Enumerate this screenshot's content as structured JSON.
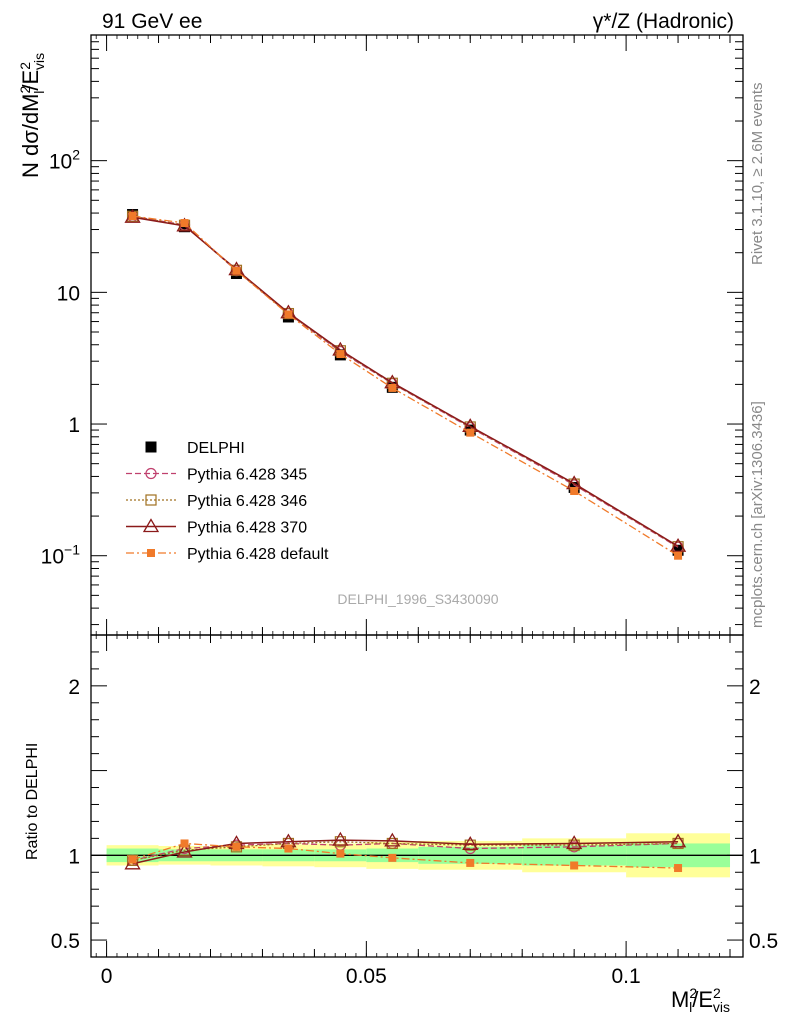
{
  "header": {
    "left": "91 GeV ee",
    "right": "γ*/Z (Hadronic)"
  },
  "side_labels": {
    "rivet": "Rivet 3.1.10, ≥ 2.6M events",
    "mcplots": "mcplots.cern.ch [arXiv:1306.3436]"
  },
  "watermark": "DELPHI_1996_S3430090",
  "chart_data": [
    {
      "type": "line",
      "panel": "main",
      "ylabel": "N dσ/dM_l^2/E_vis^2",
      "yscale": "log",
      "ylim": [
        0.025,
        900
      ],
      "xlim": [
        -0.003,
        0.1225
      ],
      "y_tick_labels": [
        "10^−1",
        "1",
        "10",
        "10^2"
      ],
      "x": [
        0.005,
        0.015,
        0.025,
        0.035,
        0.045,
        0.055,
        0.07,
        0.09,
        0.11
      ],
      "legend_position": "lower-left",
      "series": [
        {
          "name": "DELPHI",
          "style": "data",
          "color": "#000000",
          "values": [
            39.0,
            31.5,
            13.9,
            6.5,
            3.35,
            1.9,
            0.9,
            0.33,
            0.11
          ]
        },
        {
          "name": "Pythia 6.428 345",
          "style": "dashed-circle",
          "color": "#c0406e",
          "values": [
            37.8,
            32.5,
            14.6,
            6.9,
            3.55,
            2.03,
            0.94,
            0.345,
            0.116
          ]
        },
        {
          "name": "Pythia 6.428 346",
          "style": "dotted-square",
          "color": "#a07020",
          "values": [
            37.8,
            32.3,
            14.7,
            6.9,
            3.6,
            2.04,
            0.95,
            0.35,
            0.117
          ]
        },
        {
          "name": "Pythia 6.428 370",
          "style": "solid-triangle",
          "color": "#8b1a1a",
          "values": [
            37.2,
            32.0,
            14.9,
            7.0,
            3.65,
            2.06,
            0.96,
            0.353,
            0.118
          ]
        },
        {
          "name": "Pythia 6.428 default",
          "style": "dashdot-filledsquare",
          "color": "#f07a2a",
          "values": [
            38.0,
            33.6,
            14.6,
            6.8,
            3.4,
            1.88,
            0.86,
            0.31,
            0.1
          ]
        }
      ]
    },
    {
      "type": "line",
      "panel": "ratio",
      "ylabel": "Ratio to DELPHI",
      "xlabel": "M_l^2/E_vis^2",
      "ylim": [
        0.4,
        2.3
      ],
      "xlim": [
        -0.003,
        0.1225
      ],
      "y_tick_labels": [
        "0.5",
        "1",
        "2"
      ],
      "x_tick_labels": [
        "0",
        "0.05",
        "0.1"
      ],
      "x": [
        0.005,
        0.015,
        0.025,
        0.035,
        0.045,
        0.055,
        0.07,
        0.09,
        0.11
      ],
      "bands": {
        "edges": [
          0,
          0.01,
          0.02,
          0.03,
          0.04,
          0.05,
          0.06,
          0.08,
          0.1,
          0.12
        ],
        "green_half_width": [
          0.04,
          0.035,
          0.035,
          0.035,
          0.035,
          0.04,
          0.05,
          0.06,
          0.07
        ],
        "yellow_half_width": [
          0.06,
          0.055,
          0.06,
          0.065,
          0.07,
          0.08,
          0.085,
          0.1,
          0.13
        ]
      },
      "series": [
        {
          "name": "Pythia 6.428 345",
          "color": "#c0406e",
          "values": [
            0.97,
            1.04,
            1.06,
            1.07,
            1.06,
            1.07,
            1.04,
            1.05,
            1.07
          ]
        },
        {
          "name": "Pythia 6.428 346",
          "color": "#a07020",
          "values": [
            0.97,
            1.03,
            1.05,
            1.07,
            1.08,
            1.07,
            1.06,
            1.06,
            1.07
          ]
        },
        {
          "name": "Pythia 6.428 370",
          "color": "#8b1a1a",
          "values": [
            0.95,
            1.02,
            1.07,
            1.08,
            1.09,
            1.085,
            1.065,
            1.07,
            1.08
          ]
        },
        {
          "name": "Pythia 6.428 default",
          "color": "#f07a2a",
          "values": [
            0.975,
            1.07,
            1.05,
            1.04,
            1.01,
            0.985,
            0.955,
            0.94,
            0.925
          ]
        }
      ]
    }
  ]
}
